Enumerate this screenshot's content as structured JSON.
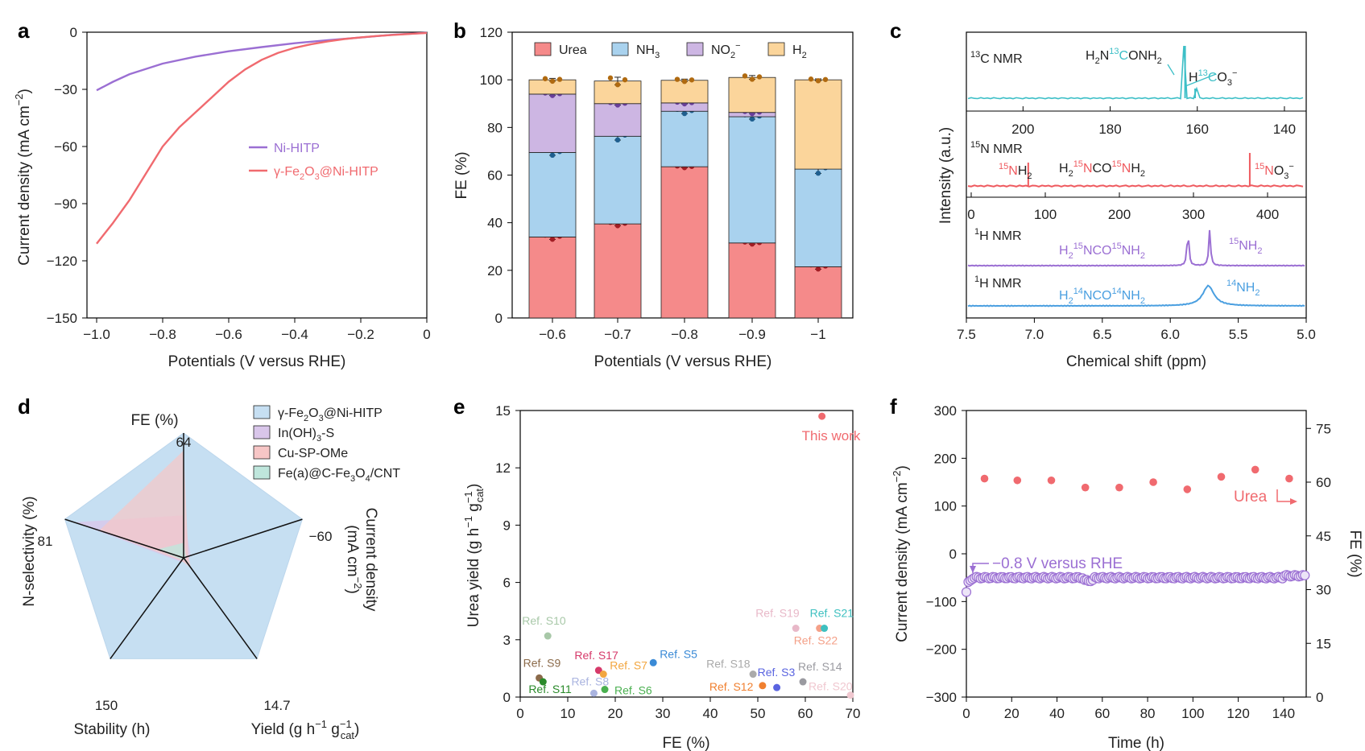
{
  "panel_labels": [
    "a",
    "b",
    "c",
    "d",
    "e",
    "f"
  ],
  "colors": {
    "ni_hitp": "#9b6fd3",
    "fe2o3": "#f06a6f",
    "urea": "#f58a8a",
    "nh3": "#a9d2ee",
    "no2": "#cdb6e3",
    "h2": "#fbd59b",
    "nmr13c": "#3dbfc7",
    "nmr15n": "#ef5a5f",
    "nmr1h15": "#9b6fd3",
    "nmr1h14": "#4a9fe0",
    "radar_fill": "#c6dff2"
  },
  "chart_data": [
    {
      "id": "a",
      "type": "line",
      "xlabel": "Potentials (V versus RHE)",
      "ylabel": "Current density (mA cm−2)",
      "xlim": [
        -1.0,
        0
      ],
      "ylim": [
        -150,
        0
      ],
      "xticks": [
        "−1.0",
        "−0.8",
        "−0.6",
        "−0.4",
        "−0.2",
        "0"
      ],
      "yticks": [
        "0",
        "−30",
        "−60",
        "−90",
        "−120",
        "−150"
      ],
      "series": [
        {
          "name": "Ni-HITP",
          "x": [
            -1.0,
            -0.95,
            -0.9,
            -0.8,
            -0.7,
            -0.6,
            -0.5,
            -0.4,
            -0.3,
            -0.2,
            -0.1,
            0
          ],
          "y": [
            -30.5,
            -26,
            -22,
            -16.5,
            -12.8,
            -10,
            -7.8,
            -5.8,
            -4.2,
            -2.8,
            -1.3,
            -0.3
          ]
        },
        {
          "name": "γ-Fe2O3@Ni-HITP",
          "x": [
            -1.0,
            -0.95,
            -0.9,
            -0.85,
            -0.8,
            -0.75,
            -0.7,
            -0.65,
            -0.6,
            -0.55,
            -0.5,
            -0.45,
            -0.4,
            -0.35,
            -0.3,
            -0.25,
            -0.2,
            -0.15,
            -0.1,
            -0.05,
            0
          ],
          "y": [
            -111,
            -100,
            -88,
            -74,
            -60,
            -50,
            -42,
            -34,
            -26,
            -19.5,
            -14.5,
            -10.8,
            -8.2,
            -6.3,
            -4.8,
            -3.6,
            -2.7,
            -2,
            -1.4,
            -0.9,
            -0.4
          ]
        }
      ]
    },
    {
      "id": "b",
      "type": "bar",
      "stacked": true,
      "xlabel": "Potentials (V versus RHE)",
      "ylabel": "FE (%)",
      "ylim": [
        0,
        120
      ],
      "yticks": [
        "0",
        "20",
        "40",
        "60",
        "80",
        "100",
        "120"
      ],
      "categories": [
        "−0.6",
        "−0.7",
        "−0.8",
        "−0.9",
        "−1"
      ],
      "legend": [
        "Urea",
        "NH3",
        "NO2−",
        "H2"
      ],
      "series": [
        {
          "name": "Urea",
          "values": [
            34,
            39.5,
            63.5,
            31.5,
            21.5
          ],
          "err": [
            1.0,
            0.8,
            0.4,
            0.5,
            1.0
          ]
        },
        {
          "name": "NH3",
          "values": [
            35.5,
            36.8,
            23.3,
            53,
            41
          ],
          "err": [
            1.2,
            1.6,
            1.0,
            1.0,
            1.8
          ]
        },
        {
          "name": "NO2−",
          "values": [
            24.5,
            13.7,
            3.5,
            1.8,
            0
          ],
          "err": [
            0.6,
            0.6,
            0.4,
            0.5,
            0
          ]
        },
        {
          "name": "H2",
          "values": [
            6,
            9.5,
            9.5,
            14.7,
            37.5
          ],
          "err": [
            0.6,
            1.6,
            0.5,
            0.8,
            0.4
          ]
        }
      ]
    },
    {
      "id": "c",
      "type": "line",
      "ylabel": "Intensity (a.u.)",
      "xlabel": "Chemical shift (ppm)",
      "x_1h_ticks": [
        "7.5",
        "7.0",
        "6.5",
        "6.0",
        "5.5",
        "5.0"
      ],
      "x_13c_ticks": [
        "200",
        "180",
        "160",
        "140"
      ],
      "x_15n_ticks": [
        "0",
        "100",
        "200",
        "300",
        "400"
      ],
      "rows": [
        {
          "name": "13C NMR",
          "peak_labels": [
            "H2N13CONH2",
            "H13CO3−"
          ],
          "peaks_ppm": [
            162.8,
            160.5
          ]
        },
        {
          "name": "15N NMR",
          "peak_labels": [
            "15NH2",
            "H215NCO15NH2",
            "15NO3−"
          ],
          "peaks_ppm": [
            77,
            376
          ]
        },
        {
          "name": "1H NMR",
          "peak_labels": [
            "H215NCO15NH2",
            "15NH2"
          ],
          "peaks_ppm": [
            5.87,
            5.71
          ]
        },
        {
          "name": "1H NMR",
          "peak_labels": [
            "H214NCO14NH2",
            "14NH2"
          ],
          "peaks_ppm": [
            5.72
          ]
        }
      ]
    },
    {
      "id": "d",
      "type": "radar",
      "axes": [
        {
          "label": "FE (%)",
          "max": "64"
        },
        {
          "label": "Current density (mA cm−2)",
          "max": "−60"
        },
        {
          "label": "Yield (g h−1 gcat−1)",
          "max": "14.7"
        },
        {
          "label": "Stability (h)",
          "max": "150"
        },
        {
          "label": "N-selectivity (%)",
          "max": "81"
        }
      ],
      "series": [
        {
          "name": "γ-Fe2O3@Ni-HITP",
          "values": [
            1,
            1,
            1,
            1,
            1
          ]
        },
        {
          "name": "In(OH)3-S",
          "values": [
            0.34,
            0.06,
            0.04,
            0.04,
            0.92
          ]
        },
        {
          "name": "Cu-SP-OMe",
          "values": [
            0.86,
            0.04,
            0.1,
            0.03,
            0.71
          ]
        },
        {
          "name": "Fe(a)@C-Fe3O4/CNT",
          "values": [
            0.12,
            0.02,
            0.02,
            0.02,
            0.22
          ]
        }
      ]
    },
    {
      "id": "e",
      "type": "scatter",
      "xlabel": "FE (%)",
      "ylabel": "Urea yield (g h−1 gcat−1)",
      "xlim": [
        0,
        70
      ],
      "ylim": [
        0,
        15
      ],
      "xticks": [
        "0",
        "10",
        "20",
        "30",
        "40",
        "50",
        "60",
        "70"
      ],
      "yticks": [
        "0",
        "3",
        "6",
        "9",
        "12",
        "15"
      ],
      "points": [
        {
          "label": "This work",
          "x": 63.5,
          "y": 14.7,
          "color": "#f06a6f"
        },
        {
          "label": "Ref. S10",
          "x": 5.8,
          "y": 3.2,
          "color": "#a8c8a8"
        },
        {
          "label": "Ref. S9",
          "x": 4.0,
          "y": 1.0,
          "color": "#8b6a4a"
        },
        {
          "label": "Ref. S11",
          "x": 4.8,
          "y": 0.8,
          "color": "#2a8a2a"
        },
        {
          "label": "Ref. S17",
          "x": 16.5,
          "y": 1.4,
          "color": "#d63a6a"
        },
        {
          "label": "Ref. S7",
          "x": 17.5,
          "y": 1.2,
          "color": "#f2a640"
        },
        {
          "label": "Ref. S8",
          "x": 15.5,
          "y": 0.2,
          "color": "#aab4e0"
        },
        {
          "label": "Ref. S6",
          "x": 17.8,
          "y": 0.4,
          "color": "#4ab050"
        },
        {
          "label": "Ref. S5",
          "x": 28.0,
          "y": 1.8,
          "color": "#3a8ad6"
        },
        {
          "label": "Ref. S18",
          "x": 49.0,
          "y": 1.2,
          "color": "#aaaaaa"
        },
        {
          "label": "Ref. S3",
          "x": 54.0,
          "y": 0.5,
          "color": "#5a64e0"
        },
        {
          "label": "Ref. S12",
          "x": 51.0,
          "y": 0.6,
          "color": "#f08030"
        },
        {
          "label": "Ref. S14",
          "x": 59.5,
          "y": 0.8,
          "color": "#9a9aa0"
        },
        {
          "label": "Ref. S19",
          "x": 58.0,
          "y": 3.6,
          "color": "#e8b8c8"
        },
        {
          "label": "Ref. S22",
          "x": 63.0,
          "y": 3.6,
          "color": "#f4a088"
        },
        {
          "label": "Ref. S21",
          "x": 64.0,
          "y": 3.6,
          "color": "#3ec0c0"
        },
        {
          "label": "Ref. S20",
          "x": 69.5,
          "y": 0.1,
          "color": "#f0c8d0"
        }
      ]
    },
    {
      "id": "f",
      "type": "scatter",
      "xlabel": "Time (h)",
      "ylabel": "Current density (mA cm−2)",
      "ylabel_right": "FE (%)",
      "xlim": [
        0,
        150
      ],
      "ylim": [
        -300,
        300
      ],
      "ylim_right": [
        0,
        80
      ],
      "xticks": [
        "0",
        "20",
        "40",
        "60",
        "80",
        "100",
        "120",
        "140"
      ],
      "yticks": [
        "300",
        "200",
        "100",
        "0",
        "−100",
        "−200",
        "−300"
      ],
      "yticks_right": [
        "75",
        "60",
        "45",
        "30",
        "15",
        "0"
      ],
      "annotations": [
        "−0.8 V versus RHE",
        "Urea"
      ],
      "series": [
        {
          "name": "Urea FE",
          "x": [
            8,
            22.5,
            37.5,
            52.5,
            67.5,
            82.5,
            97.5,
            112.5,
            127.5,
            142.5
          ],
          "y": [
            61,
            60.5,
            60.5,
            58.5,
            58.5,
            60,
            58,
            61.5,
            63.5,
            61
          ]
        },
        {
          "name": "Current density",
          "x_start": 0,
          "x_end": 150,
          "y_start": -80,
          "y_steady": -50
        }
      ]
    }
  ]
}
